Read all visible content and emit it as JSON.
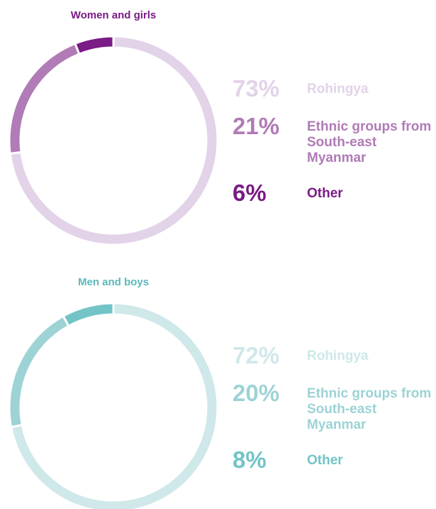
{
  "chart_data": [
    {
      "type": "pie",
      "donut": true,
      "title": "Women and girls",
      "title_color": "#7a1b86",
      "categories": [
        "Rohingya",
        "Ethnic groups from South-east Myanmar",
        "Other"
      ],
      "values": [
        73,
        21,
        6
      ],
      "value_labels": [
        "73%",
        "21%",
        "6%"
      ],
      "colors": [
        "#e2d3e9",
        "#b07bb6",
        "#7a1b86"
      ]
    },
    {
      "type": "pie",
      "donut": true,
      "title": "Men and boys",
      "title_color": "#5bb8bc",
      "categories": [
        "Rohingya",
        "Ethnic groups from South-east Myanmar",
        "Other"
      ],
      "values": [
        72,
        20,
        8
      ],
      "value_labels": [
        "72%",
        "20%",
        "8%"
      ],
      "colors": [
        "#cfe8ea",
        "#9dd3d5",
        "#72c4c7"
      ]
    }
  ]
}
